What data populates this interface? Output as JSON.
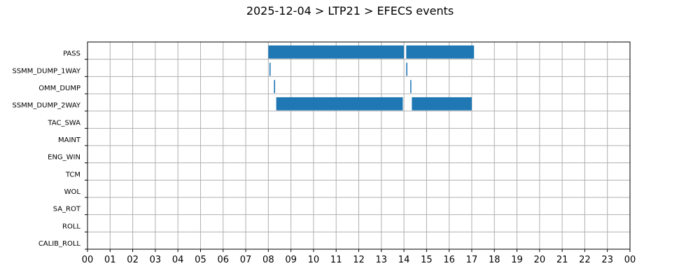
{
  "chart_data": {
    "type": "bar",
    "orientation": "horizontal-timeline",
    "title": "2025-12-04 > LTP21 > EFECS events",
    "xlabel": "",
    "ylabel": "",
    "xlim": [
      0,
      24
    ],
    "grid": true,
    "color": "#1f77b4",
    "x_tick_labels": [
      "00",
      "01",
      "02",
      "03",
      "04",
      "05",
      "06",
      "07",
      "08",
      "09",
      "10",
      "11",
      "12",
      "13",
      "14",
      "15",
      "16",
      "17",
      "18",
      "19",
      "20",
      "21",
      "22",
      "23",
      "00"
    ],
    "categories": [
      "PASS",
      "SSMM_DUMP_1WAY",
      "OMM_DUMP",
      "SSMM_DUMP_2WAY",
      "TAC_SWA",
      "MAINT",
      "ENG_WIN",
      "TCM",
      "WOL",
      "SA_ROT",
      "ROLL",
      "CALIB_ROLL"
    ],
    "events": [
      {
        "category": "PASS",
        "start": 8.0,
        "end": 14.0
      },
      {
        "category": "PASS",
        "start": 14.1,
        "end": 17.1
      },
      {
        "category": "SSMM_DUMP_1WAY",
        "start": 8.05,
        "end": 8.1
      },
      {
        "category": "SSMM_DUMP_1WAY",
        "start": 14.1,
        "end": 14.15
      },
      {
        "category": "OMM_DUMP",
        "start": 8.25,
        "end": 8.3
      },
      {
        "category": "OMM_DUMP",
        "start": 14.28,
        "end": 14.3
      },
      {
        "category": "SSMM_DUMP_2WAY",
        "start": 8.35,
        "end": 13.95
      },
      {
        "category": "SSMM_DUMP_2WAY",
        "start": 14.35,
        "end": 17.0
      }
    ]
  }
}
